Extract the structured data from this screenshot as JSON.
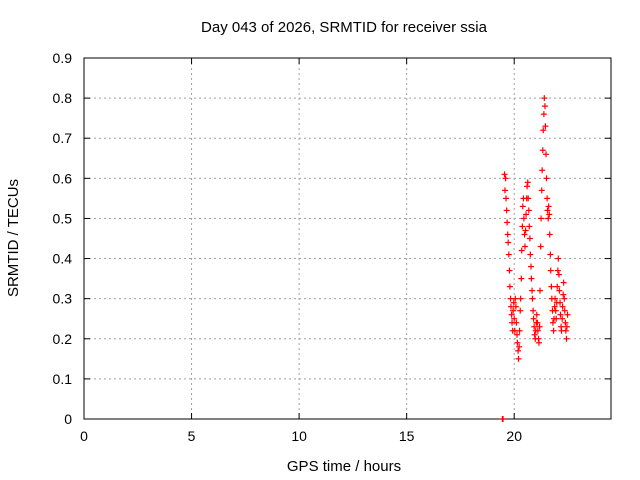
{
  "chart_data": {
    "type": "scatter",
    "title": "Day 043 of 2026, SRMTID for receiver ssia",
    "xlabel": "GPS time / hours",
    "ylabel": "SRMTID / TECUs",
    "xlim": [
      0,
      24.5
    ],
    "ylim": [
      0,
      0.9
    ],
    "xticks": [
      0,
      5,
      10,
      15,
      20
    ],
    "yticks": [
      0,
      0.1,
      0.2,
      0.3,
      0.4,
      0.5,
      0.6,
      0.7,
      0.8,
      0.9
    ],
    "grid": true,
    "marker": "+",
    "color": "#ff0000",
    "series": [
      {
        "name": "SRMTID",
        "points": [
          [
            19.45,
            0.0
          ],
          [
            19.48,
            0.0
          ],
          [
            19.55,
            0.61
          ],
          [
            19.57,
            0.57
          ],
          [
            19.6,
            0.6
          ],
          [
            19.62,
            0.55
          ],
          [
            19.65,
            0.52
          ],
          [
            19.67,
            0.49
          ],
          [
            19.7,
            0.46
          ],
          [
            19.72,
            0.44
          ],
          [
            19.75,
            0.41
          ],
          [
            19.78,
            0.37
          ],
          [
            19.8,
            0.33
          ],
          [
            19.83,
            0.3
          ],
          [
            19.85,
            0.28
          ],
          [
            19.88,
            0.26
          ],
          [
            19.9,
            0.24
          ],
          [
            19.93,
            0.22
          ],
          [
            19.95,
            0.27
          ],
          [
            19.98,
            0.29
          ],
          [
            20.0,
            0.25
          ],
          [
            20.03,
            0.22
          ],
          [
            20.05,
            0.3
          ],
          [
            20.08,
            0.28
          ],
          [
            20.1,
            0.24
          ],
          [
            20.13,
            0.21
          ],
          [
            20.15,
            0.19
          ],
          [
            20.18,
            0.17
          ],
          [
            20.2,
            0.15
          ],
          [
            20.23,
            0.18
          ],
          [
            20.25,
            0.22
          ],
          [
            20.28,
            0.27
          ],
          [
            20.3,
            0.3
          ],
          [
            20.33,
            0.35
          ],
          [
            20.35,
            0.42
          ],
          [
            20.38,
            0.48
          ],
          [
            20.4,
            0.53
          ],
          [
            20.43,
            0.55
          ],
          [
            20.45,
            0.5
          ],
          [
            20.48,
            0.46
          ],
          [
            20.5,
            0.43
          ],
          [
            20.53,
            0.47
          ],
          [
            20.55,
            0.51
          ],
          [
            20.58,
            0.55
          ],
          [
            20.6,
            0.58
          ],
          [
            20.63,
            0.59
          ],
          [
            20.65,
            0.55
          ],
          [
            20.68,
            0.52
          ],
          [
            20.7,
            0.48
          ],
          [
            20.73,
            0.45
          ],
          [
            20.75,
            0.41
          ],
          [
            20.78,
            0.38
          ],
          [
            20.8,
            0.35
          ],
          [
            20.83,
            0.32
          ],
          [
            20.85,
            0.3
          ],
          [
            20.88,
            0.27
          ],
          [
            20.9,
            0.25
          ],
          [
            20.93,
            0.23
          ],
          [
            20.95,
            0.21
          ],
          [
            20.98,
            0.2
          ],
          [
            21.0,
            0.22
          ],
          [
            21.03,
            0.24
          ],
          [
            21.05,
            0.26
          ],
          [
            21.08,
            0.24
          ],
          [
            21.1,
            0.22
          ],
          [
            21.13,
            0.2
          ],
          [
            21.15,
            0.19
          ],
          [
            21.18,
            0.23
          ],
          [
            21.2,
            0.32
          ],
          [
            21.23,
            0.43
          ],
          [
            21.25,
            0.5
          ],
          [
            21.28,
            0.57
          ],
          [
            21.3,
            0.62
          ],
          [
            21.33,
            0.67
          ],
          [
            21.35,
            0.72
          ],
          [
            21.38,
            0.76
          ],
          [
            21.4,
            0.8
          ],
          [
            21.43,
            0.78
          ],
          [
            21.45,
            0.73
          ],
          [
            21.48,
            0.66
          ],
          [
            21.5,
            0.6
          ],
          [
            21.53,
            0.55
          ],
          [
            21.55,
            0.52
          ],
          [
            21.58,
            0.5
          ],
          [
            21.6,
            0.53
          ],
          [
            21.63,
            0.51
          ],
          [
            21.65,
            0.46
          ],
          [
            21.68,
            0.41
          ],
          [
            21.7,
            0.37
          ],
          [
            21.73,
            0.33
          ],
          [
            21.75,
            0.3
          ],
          [
            21.78,
            0.27
          ],
          [
            21.8,
            0.24
          ],
          [
            21.83,
            0.22
          ],
          [
            21.85,
            0.25
          ],
          [
            21.88,
            0.28
          ],
          [
            21.9,
            0.3
          ],
          [
            21.93,
            0.27
          ],
          [
            21.95,
            0.25
          ],
          [
            21.98,
            0.29
          ],
          [
            22.0,
            0.33
          ],
          [
            22.03,
            0.37
          ],
          [
            22.05,
            0.4
          ],
          [
            22.08,
            0.36
          ],
          [
            22.1,
            0.32
          ],
          [
            22.13,
            0.29
          ],
          [
            22.15,
            0.26
          ],
          [
            22.18,
            0.23
          ],
          [
            22.2,
            0.22
          ],
          [
            22.23,
            0.25
          ],
          [
            22.25,
            0.28
          ],
          [
            22.28,
            0.31
          ],
          [
            22.3,
            0.34
          ],
          [
            22.33,
            0.3
          ],
          [
            22.35,
            0.27
          ],
          [
            22.38,
            0.24
          ],
          [
            22.4,
            0.22
          ],
          [
            22.43,
            0.2
          ],
          [
            22.45,
            0.23
          ],
          [
            22.48,
            0.26
          ]
        ]
      }
    ]
  }
}
